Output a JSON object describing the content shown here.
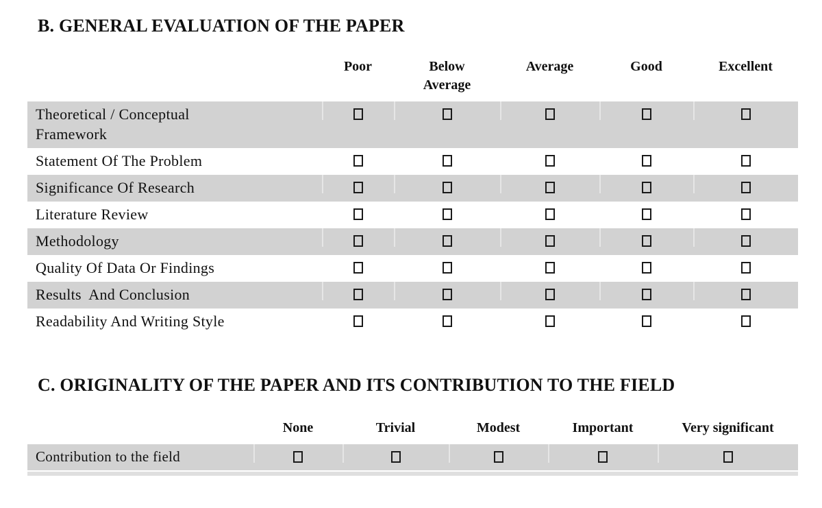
{
  "page": {
    "background_color": "#ffffff",
    "text_color": "#111111",
    "row_shade_color": "#d2d2d2"
  },
  "section_b": {
    "title": "B. GENERAL EVALUATION OF THE PAPER",
    "columns": [
      "Poor",
      "Below Average",
      "Average",
      "Good",
      "Excellent"
    ],
    "rows": [
      {
        "label": "Theoretical / Conceptual\nFramework",
        "shaded": true,
        "checkboxes": [
          "unchecked",
          "unchecked",
          "unchecked",
          "unchecked",
          "unchecked"
        ]
      },
      {
        "label": "Statement Of The Problem",
        "shaded": false,
        "checkboxes": [
          "unchecked",
          "unchecked",
          "unchecked",
          "unchecked",
          "unchecked"
        ]
      },
      {
        "label": "Significance Of Research",
        "shaded": true,
        "checkboxes": [
          "unchecked",
          "unchecked",
          "unchecked",
          "unchecked",
          "unchecked"
        ]
      },
      {
        "label": "Literature Review",
        "shaded": false,
        "checkboxes": [
          "unchecked",
          "unchecked",
          "unchecked",
          "unchecked",
          "unchecked"
        ]
      },
      {
        "label": "Methodology",
        "shaded": true,
        "checkboxes": [
          "unchecked",
          "unchecked",
          "unchecked",
          "unchecked",
          "unchecked"
        ]
      },
      {
        "label": "Quality Of Data Or Findings",
        "shaded": false,
        "checkboxes": [
          "unchecked",
          "unchecked",
          "unchecked",
          "unchecked",
          "unchecked"
        ]
      },
      {
        "label": "Results  And Conclusion",
        "shaded": true,
        "checkboxes": [
          "unchecked",
          "unchecked",
          "unchecked",
          "unchecked",
          "unchecked"
        ]
      },
      {
        "label": "Readability And Writing Style",
        "shaded": false,
        "checkboxes": [
          "unchecked",
          "unchecked",
          "unchecked",
          "unchecked",
          "unchecked"
        ]
      }
    ]
  },
  "section_c": {
    "title": "C. ORIGINALITY OF THE PAPER AND ITS CONTRIBUTION TO THE FIELD",
    "columns": [
      "None",
      "Trivial",
      "Modest",
      "Important",
      "Very significant"
    ],
    "rows": [
      {
        "label": "Contribution to the field",
        "shaded": true,
        "checkboxes": [
          "unchecked",
          "unchecked",
          "unchecked",
          "unchecked",
          "unchecked"
        ]
      }
    ]
  }
}
